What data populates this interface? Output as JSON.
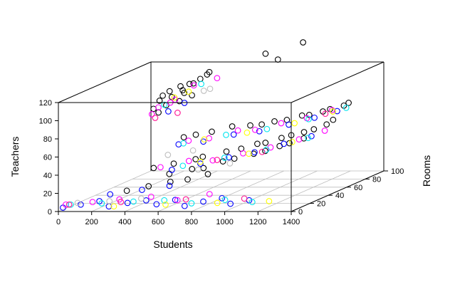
{
  "chart_data": {
    "type": "scatter",
    "projection": "3d",
    "title": "",
    "xlabel": "Students",
    "ylabel": "Rooms",
    "zlabel": "Teachers",
    "xlim": [
      0,
      1400
    ],
    "ylim": [
      0,
      100
    ],
    "zlim": [
      0,
      120
    ],
    "x_ticks": [
      "0",
      "200",
      "400",
      "600",
      "800",
      "1000",
      "1200",
      "1400"
    ],
    "y_ticks": [
      "0",
      "20",
      "40",
      "60",
      "80",
      "100"
    ],
    "z_ticks": [
      "0",
      "20",
      "40",
      "60",
      "80",
      "100",
      "120"
    ],
    "grid": "floor",
    "legend": "none",
    "colors": [
      "#000000",
      "#0000ff",
      "#ff00ff",
      "#00e5ee",
      "#ffff00",
      "#bebebe",
      "#ff1493"
    ],
    "series": [
      {
        "color": "#000000",
        "points": [
          [
            60,
            92,
            72
          ],
          [
            85,
            94,
            80
          ],
          [
            110,
            93,
            86
          ],
          [
            140,
            95,
            90
          ],
          [
            170,
            92,
            85
          ],
          [
            200,
            96,
            95
          ],
          [
            230,
            93,
            92
          ],
          [
            260,
            95,
            98
          ],
          [
            300,
            92,
            100
          ],
          [
            330,
            94,
            104
          ],
          [
            360,
            96,
            108
          ],
          [
            390,
            93,
            112
          ],
          [
            700,
            98,
            130
          ],
          [
            780,
            97,
            124
          ],
          [
            920,
            99,
            142
          ],
          [
            420,
            60,
            55
          ],
          [
            520,
            55,
            60
          ],
          [
            600,
            58,
            62
          ],
          [
            700,
            62,
            66
          ],
          [
            820,
            60,
            68
          ],
          [
            900,
            58,
            70
          ],
          [
            960,
            61,
            72
          ],
          [
            1040,
            60,
            74
          ],
          [
            1120,
            62,
            78
          ],
          [
            1180,
            59,
            80
          ],
          [
            1240,
            63,
            82
          ],
          [
            1300,
            60,
            86
          ],
          [
            1360,
            64,
            88
          ],
          [
            1400,
            62,
            92
          ],
          [
            350,
            40,
            30
          ],
          [
            460,
            42,
            34
          ],
          [
            580,
            44,
            38
          ],
          [
            640,
            41,
            42
          ],
          [
            760,
            45,
            46
          ],
          [
            860,
            43,
            50
          ],
          [
            940,
            46,
            54
          ],
          [
            1000,
            44,
            56
          ],
          [
            1080,
            47,
            60
          ],
          [
            1150,
            45,
            64
          ],
          [
            1210,
            48,
            66
          ],
          [
            1280,
            46,
            70
          ],
          [
            1340,
            49,
            74
          ],
          [
            1390,
            47,
            80
          ],
          [
            500,
            30,
            28
          ],
          [
            620,
            33,
            32
          ],
          [
            700,
            31,
            34
          ],
          [
            800,
            34,
            40
          ],
          [
            880,
            32,
            44
          ],
          [
            980,
            35,
            48
          ],
          [
            1060,
            33,
            52
          ],
          [
            1130,
            36,
            56
          ],
          [
            1200,
            34,
            60
          ],
          [
            1270,
            37,
            64
          ],
          [
            300,
            20,
            14
          ],
          [
            420,
            22,
            18
          ],
          [
            540,
            24,
            22
          ],
          [
            660,
            21,
            26
          ],
          [
            760,
            25,
            30
          ],
          [
            90,
            92,
            68
          ],
          [
            125,
            94,
            75
          ],
          [
            210,
            93,
            80
          ],
          [
            250,
            91,
            90
          ],
          [
            280,
            94,
            86
          ]
        ]
      },
      {
        "color": "#0000ff",
        "points": [
          [
            0,
            5,
            2
          ],
          [
            90,
            8,
            4
          ],
          [
            180,
            12,
            6
          ],
          [
            270,
            6,
            3
          ],
          [
            360,
            10,
            5
          ],
          [
            450,
            14,
            6
          ],
          [
            540,
            9,
            4
          ],
          [
            630,
            13,
            7
          ],
          [
            720,
            7,
            3
          ],
          [
            810,
            11,
            6
          ],
          [
            900,
            15,
            8
          ],
          [
            990,
            8,
            5
          ],
          [
            1080,
            12,
            7
          ],
          [
            160,
            90,
            70
          ],
          [
            240,
            93,
            78
          ],
          [
            400,
            58,
            48
          ],
          [
            560,
            56,
            52
          ],
          [
            720,
            60,
            58
          ],
          [
            880,
            59,
            62
          ],
          [
            1040,
            62,
            68
          ],
          [
            1200,
            61,
            76
          ],
          [
            1320,
            64,
            82
          ],
          [
            460,
            40,
            28
          ],
          [
            620,
            42,
            34
          ],
          [
            780,
            44,
            40
          ],
          [
            940,
            43,
            46
          ],
          [
            1100,
            46,
            54
          ],
          [
            1260,
            47,
            62
          ],
          [
            200,
            20,
            10
          ],
          [
            380,
            22,
            14
          ],
          [
            540,
            23,
            18
          ]
        ]
      },
      {
        "color": "#ff00ff",
        "points": [
          [
            50,
            92,
            66
          ],
          [
            95,
            91,
            74
          ],
          [
            150,
            94,
            78
          ],
          [
            190,
            92,
            82
          ],
          [
            280,
            96,
            96
          ],
          [
            420,
            96,
            104
          ],
          [
            460,
            58,
            52
          ],
          [
            600,
            55,
            56
          ],
          [
            740,
            61,
            62
          ],
          [
            860,
            58,
            64
          ],
          [
            1000,
            61,
            70
          ],
          [
            1160,
            60,
            76
          ],
          [
            1300,
            62,
            84
          ],
          [
            300,
            12,
            8
          ],
          [
            480,
            14,
            10
          ],
          [
            660,
            10,
            8
          ],
          [
            820,
            16,
            12
          ],
          [
            380,
            42,
            30
          ],
          [
            540,
            44,
            36
          ],
          [
            700,
            41,
            38
          ],
          [
            860,
            45,
            44
          ],
          [
            1020,
            46,
            50
          ],
          [
            1180,
            48,
            58
          ],
          [
            1340,
            47,
            68
          ],
          [
            0,
            8,
            4
          ],
          [
            150,
            10,
            6
          ]
        ]
      },
      {
        "color": "#00e5ee",
        "points": [
          [
            30,
            8,
            4
          ],
          [
            210,
            9,
            5
          ],
          [
            390,
            11,
            6
          ],
          [
            570,
            12,
            7
          ],
          [
            750,
            9,
            5
          ],
          [
            930,
            13,
            7
          ],
          [
            1110,
            10,
            6
          ],
          [
            440,
            56,
            50
          ],
          [
            680,
            59,
            58
          ],
          [
            920,
            60,
            64
          ],
          [
            1160,
            62,
            74
          ],
          [
            1380,
            63,
            86
          ],
          [
            520,
            41,
            32
          ],
          [
            760,
            43,
            40
          ],
          [
            1000,
            45,
            48
          ],
          [
            1240,
            47,
            60
          ],
          [
            120,
            93,
            76
          ],
          [
            330,
            95,
            98
          ]
        ]
      },
      {
        "color": "#ffff00",
        "points": [
          [
            300,
            6,
            3
          ],
          [
            600,
            8,
            4
          ],
          [
            900,
            10,
            5
          ],
          [
            1200,
            12,
            6
          ],
          [
            560,
            57,
            54
          ],
          [
            800,
            60,
            60
          ],
          [
            1080,
            61,
            70
          ],
          [
            1300,
            63,
            82
          ],
          [
            620,
            42,
            36
          ],
          [
            900,
            44,
            44
          ],
          [
            1150,
            46,
            56
          ],
          [
            180,
            93,
            84
          ],
          [
            260,
            94,
            90
          ]
        ]
      },
      {
        "color": "#bebebe",
        "points": [
          [
            60,
            10,
            5
          ],
          [
            240,
            12,
            6
          ],
          [
            420,
            14,
            8
          ],
          [
            340,
            96,
            90
          ],
          [
            400,
            92,
            94
          ],
          [
            380,
            50,
            40
          ],
          [
            520,
            52,
            44
          ],
          [
            640,
            36,
            30
          ],
          [
            820,
            38,
            36
          ]
        ]
      },
      {
        "color": "#ff1493",
        "points": [
          [
            20,
            8,
            4
          ],
          [
            320,
            10,
            6
          ],
          [
            700,
            12,
            8
          ],
          [
            1040,
            14,
            8
          ],
          [
            1260,
            62,
            80
          ],
          [
            720,
            42,
            38
          ],
          [
            980,
            44,
            46
          ],
          [
            70,
            92,
            62
          ],
          [
            210,
            91,
            68
          ]
        ]
      }
    ]
  }
}
